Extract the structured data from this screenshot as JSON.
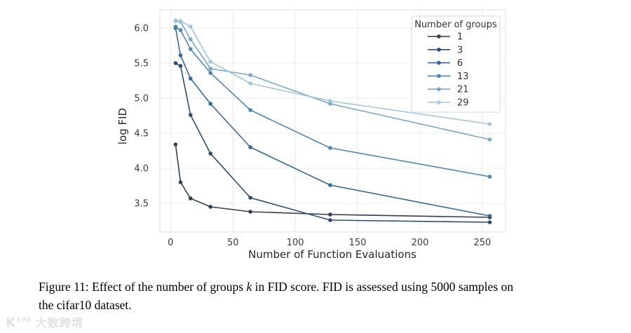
{
  "chart_data": {
    "type": "line",
    "title": "",
    "xlabel": "Number of Function Evaluations",
    "ylabel": "log FID",
    "x": [
      4,
      8,
      16,
      32,
      64,
      128,
      256
    ],
    "xticks": [
      0,
      50,
      100,
      150,
      200,
      250
    ],
    "yticks": [
      3.5,
      4.0,
      4.5,
      5.0,
      5.5,
      6.0
    ],
    "xlim": [
      -8.6,
      268.6
    ],
    "ylim": [
      3.09,
      6.26
    ],
    "grid": true,
    "legend": {
      "title": "Number of groups",
      "position": "upper right"
    },
    "series": [
      {
        "name": "1",
        "color": "#313e4e",
        "values": [
          4.34,
          3.8,
          3.57,
          3.45,
          3.38,
          3.34,
          3.3
        ]
      },
      {
        "name": "3",
        "color": "#2c4f71",
        "values": [
          5.5,
          5.46,
          4.76,
          4.21,
          3.58,
          3.26,
          3.23
        ]
      },
      {
        "name": "6",
        "color": "#35689a",
        "values": [
          6.0,
          5.61,
          5.28,
          4.92,
          4.3,
          3.76,
          3.32
        ]
      },
      {
        "name": "13",
        "color": "#4c87b7",
        "values": [
          6.02,
          5.97,
          5.7,
          5.36,
          4.83,
          4.29,
          3.88
        ]
      },
      {
        "name": "21",
        "color": "#77a8cc",
        "values": [
          6.1,
          6.09,
          5.84,
          5.42,
          5.33,
          4.92,
          4.41
        ]
      },
      {
        "name": "29",
        "color": "#a2c6de",
        "values": [
          6.11,
          6.1,
          6.02,
          5.52,
          5.21,
          4.96,
          4.63
        ]
      }
    ],
    "grid_color": "#e8ecef",
    "frame_color": "#dcdfe3",
    "tick_color": "#3b3b3b",
    "label_color": "#262626"
  },
  "caption": {
    "line1_before_k": "Figure 11: Effect of the number of groups ",
    "k": "k",
    "line1_after_k": " in FID score. FID is assessed using 5000 samples on",
    "line2": "the cifar10 dataset."
  },
  "watermark": {
    "logo_k": "K",
    "logo_sup": "100",
    "text": "大数跨境"
  }
}
